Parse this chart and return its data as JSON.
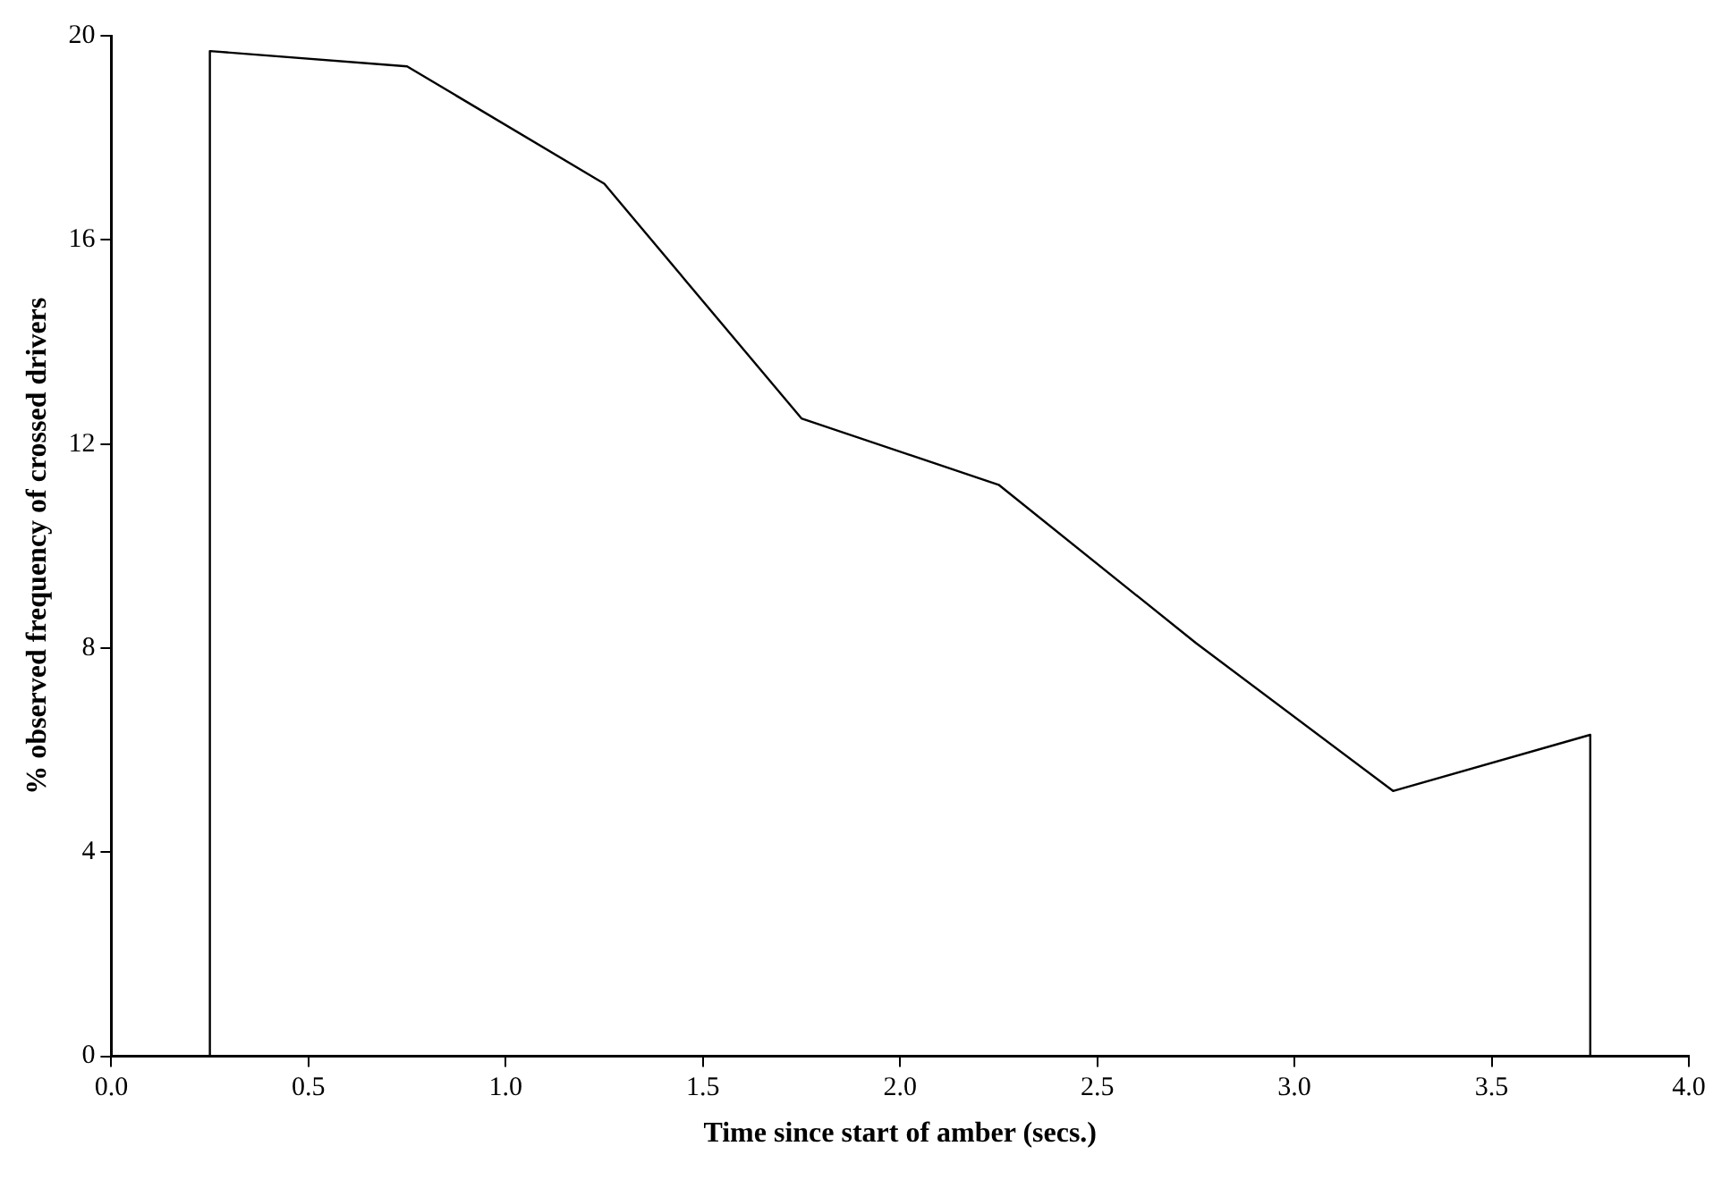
{
  "chart_data": {
    "type": "line",
    "xlabel": "Time since start of amber (secs.)",
    "ylabel": "% observed frequency of crossed drivers",
    "x": [
      0,
      0.25,
      0.25,
      0.75,
      1.25,
      1.75,
      2.25,
      2.75,
      3.25,
      3.75,
      3.75
    ],
    "series": [
      {
        "color": "#000000",
        "values": [
          0,
          0,
          19.7,
          19.4,
          17.1,
          12.5,
          11.2,
          8.1,
          5.2,
          6.3,
          0
        ]
      }
    ],
    "xlim": [
      0,
      4
    ],
    "xticks": [
      {
        "value": 0,
        "label": "0.0"
      },
      {
        "value": 0.5,
        "label": "0.5"
      },
      {
        "value": 1,
        "label": "1.0"
      },
      {
        "value": 1.5,
        "label": "1.5"
      },
      {
        "value": 2,
        "label": "2.0"
      },
      {
        "value": 2.5,
        "label": "2.5"
      },
      {
        "value": 3,
        "label": "3.0"
      },
      {
        "value": 3.5,
        "label": "3.5"
      },
      {
        "value": 4,
        "label": "4.0"
      }
    ],
    "ylim": [
      0,
      20
    ],
    "yticks": [
      0,
      4,
      8,
      12,
      16,
      20
    ],
    "grid": false,
    "legend": false
  }
}
